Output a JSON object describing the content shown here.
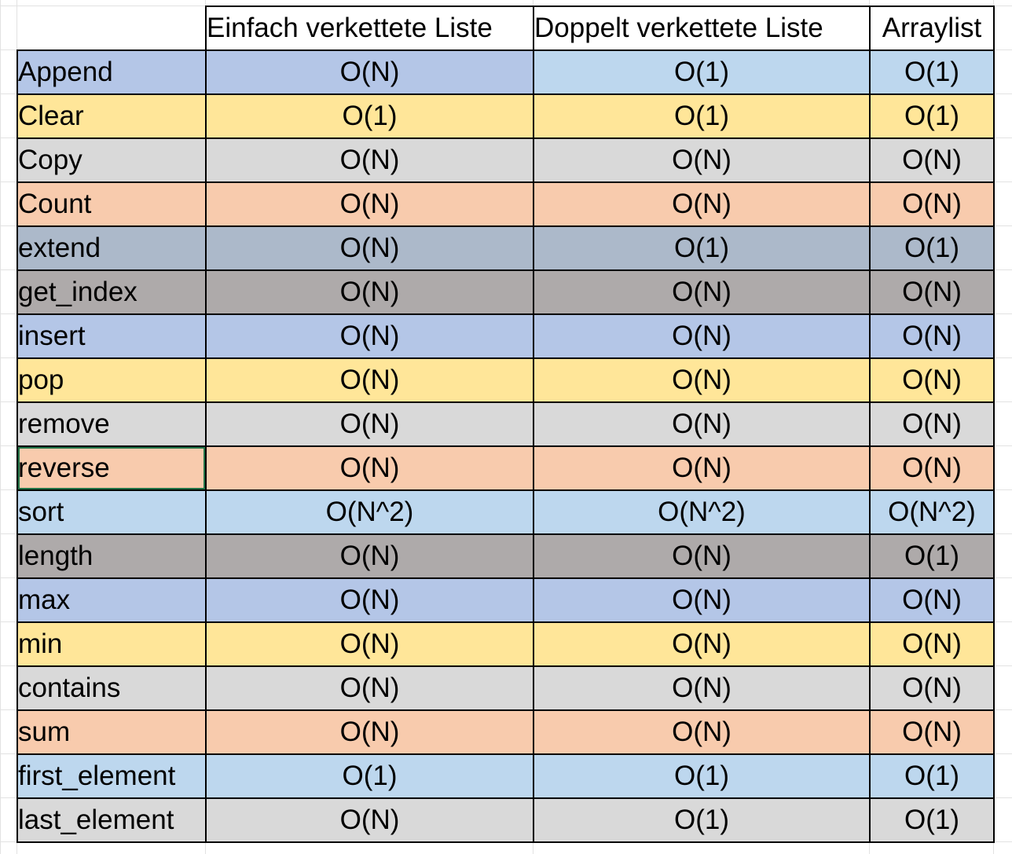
{
  "columns": {
    "c1": "Einfach verkettete Liste",
    "c2": "Doppelt verkettete Liste",
    "c3": "Arraylist"
  },
  "row_colors": {
    "blue": "#b4c6e7",
    "yellow": "#ffe699",
    "gray": "#d9d9d9",
    "orange": "#f8cbad",
    "slate": "#acb9ca",
    "taupe": "#aeaaaa",
    "lightblue": "#bdd7ee"
  },
  "rows": [
    {
      "op": "Append",
      "c1": "O(N)",
      "c2": "O(1)",
      "c3": "O(1)"
    },
    {
      "op": "Clear",
      "c1": "O(1)",
      "c2": "O(1)",
      "c3": "O(1)"
    },
    {
      "op": "Copy",
      "c1": "O(N)",
      "c2": "O(N)",
      "c3": "O(N)"
    },
    {
      "op": "Count",
      "c1": "O(N)",
      "c2": "O(N)",
      "c3": "O(N)"
    },
    {
      "op": "extend",
      "c1": "O(N)",
      "c2": "O(1)",
      "c3": "O(1)"
    },
    {
      "op": "get_index",
      "c1": "O(N)",
      "c2": "O(N)",
      "c3": "O(N)"
    },
    {
      "op": "insert",
      "c1": "O(N)",
      "c2": "O(N)",
      "c3": "O(N)"
    },
    {
      "op": "pop",
      "c1": "O(N)",
      "c2": "O(N)",
      "c3": "O(N)"
    },
    {
      "op": "remove",
      "c1": "O(N)",
      "c2": "O(N)",
      "c3": "O(N)"
    },
    {
      "op": "reverse",
      "c1": "O(N)",
      "c2": "O(N)",
      "c3": "O(N)"
    },
    {
      "op": "sort",
      "c1": "O(N^2)",
      "c2": "O(N^2)",
      "c3": "O(N^2)"
    },
    {
      "op": "length",
      "c1": "O(N)",
      "c2": "O(N)",
      "c3": "O(1)"
    },
    {
      "op": "max",
      "c1": "O(N)",
      "c2": "O(N)",
      "c3": "O(N)"
    },
    {
      "op": "min",
      "c1": "O(N)",
      "c2": "O(N)",
      "c3": "O(N)"
    },
    {
      "op": "contains",
      "c1": "O(N)",
      "c2": "O(N)",
      "c3": "O(N)"
    },
    {
      "op": "sum",
      "c1": "O(N)",
      "c2": "O(N)",
      "c3": "O(N)"
    },
    {
      "op": "first_element",
      "c1": "O(1)",
      "c2": "O(1)",
      "c3": "O(1)"
    },
    {
      "op": "last_element",
      "c1": "O(N)",
      "c2": "O(1)",
      "c3": "O(1)"
    }
  ]
}
